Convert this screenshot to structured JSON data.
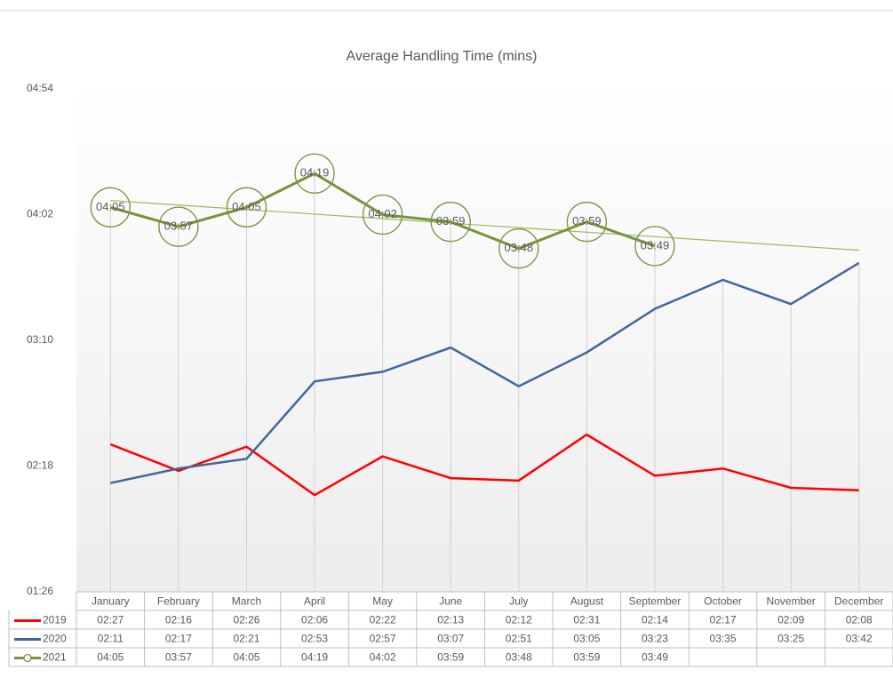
{
  "chart_data": {
    "type": "line",
    "title": "Average Handling Time (mins)",
    "categories": [
      "January",
      "February",
      "March",
      "April",
      "May",
      "June",
      "July",
      "August",
      "September",
      "October",
      "November",
      "December"
    ],
    "series": [
      {
        "name": "2019",
        "color": "#ff0000",
        "values": [
          147,
          136,
          146,
          126,
          142,
          133,
          132,
          151,
          134,
          137,
          129,
          128
        ],
        "value_labels": [
          "02:27",
          "02:16",
          "02:26",
          "02:06",
          "02:22",
          "02:13",
          "02:12",
          "02:31",
          "02:14",
          "02:17",
          "02:09",
          "02:08"
        ]
      },
      {
        "name": "2020",
        "color": "#41679a",
        "values": [
          131,
          137,
          141,
          173,
          177,
          187,
          171,
          185,
          203,
          215,
          205,
          222
        ],
        "value_labels": [
          "02:11",
          "02:17",
          "02:21",
          "02:53",
          "02:57",
          "03:07",
          "02:51",
          "03:05",
          "03:23",
          "03:35",
          "03:25",
          "03:42"
        ]
      },
      {
        "name": "2021",
        "color": "#77933c",
        "values": [
          245,
          237,
          245,
          259,
          242,
          239,
          228,
          239,
          229,
          null,
          null,
          null
        ],
        "value_labels": [
          "04:05",
          "03:57",
          "04:05",
          "04:19",
          "04:02",
          "03:59",
          "03:48",
          "03:59",
          "03:49",
          null,
          null,
          null
        ]
      }
    ],
    "ylim": [
      86,
      294
    ],
    "yticks": [
      {
        "value": 86,
        "label": "01:26"
      },
      {
        "value": 138,
        "label": "02:18"
      },
      {
        "value": 190,
        "label": "03:10"
      },
      {
        "value": 242,
        "label": "04:02"
      },
      {
        "value": 294,
        "label": "04:54"
      }
    ],
    "trendline_color": "#9bbb59"
  }
}
